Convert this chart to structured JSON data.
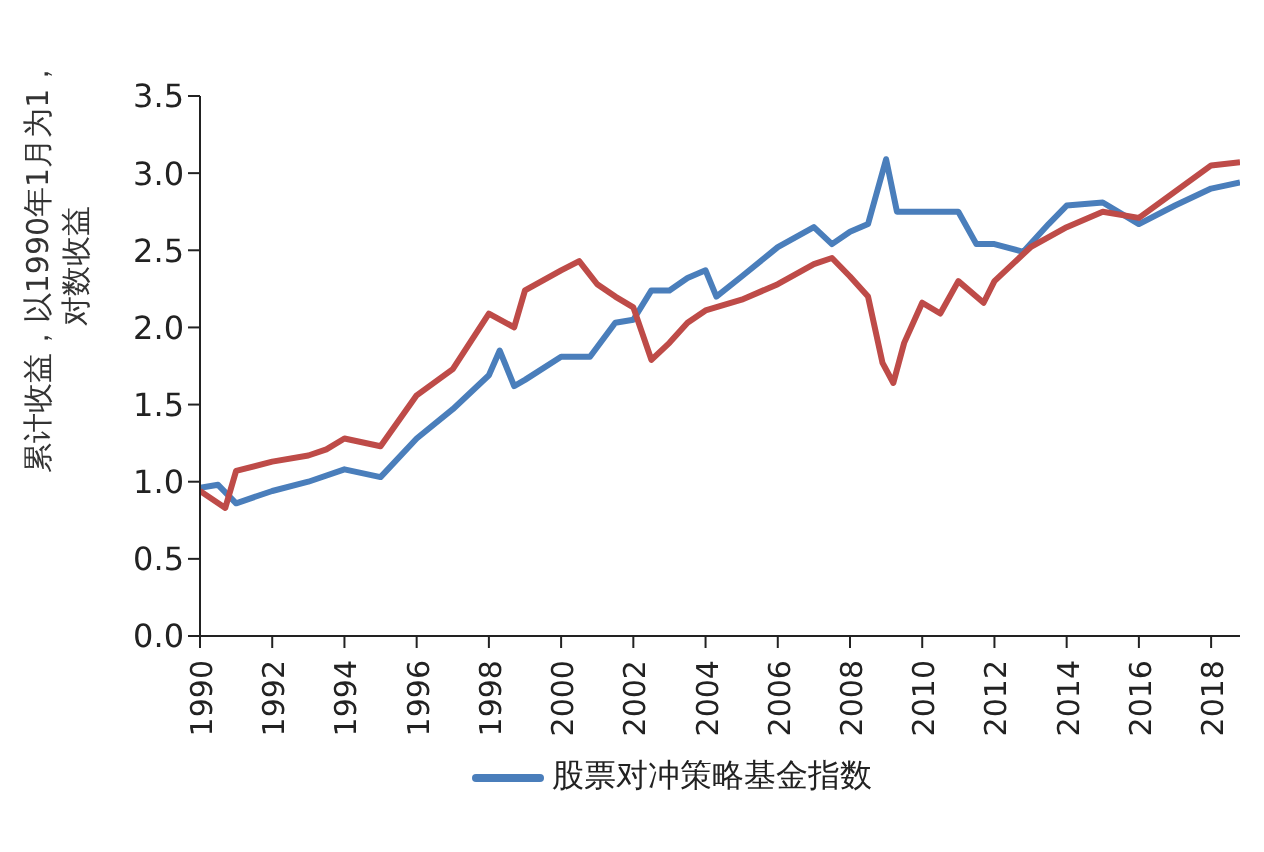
{
  "chart_data": {
    "type": "line",
    "ylabel": "累计收益，以1990年1月为1，对数收益",
    "xlim": [
      1990,
      2018.8
    ],
    "xticks": [
      1990,
      1992,
      1994,
      1996,
      1998,
      2000,
      2002,
      2004,
      2006,
      2008,
      2010,
      2012,
      2014,
      2016,
      2018
    ],
    "ylim": [
      0,
      3.5
    ],
    "yticks": [
      {
        "value": 0,
        "label": "0.0"
      },
      0.5,
      {
        "value": 1,
        "label": "1.0"
      },
      1.5,
      {
        "value": 2,
        "label": "2.0"
      },
      2.5,
      {
        "value": 3,
        "label": "3.0"
      },
      3.5
    ],
    "grid": false,
    "legend": "bottom",
    "marker": "none",
    "line_style": "solid",
    "series": [
      {
        "name": "股票对冲策略基金指数",
        "color": "#4a7ebb",
        "x": [
          1990,
          1990.5,
          1991,
          1992,
          1993,
          1994,
          1995,
          1996,
          1997,
          1998,
          1998.3,
          1998.7,
          1999,
          2000,
          2000.8,
          2001.5,
          2002,
          2002.5,
          2003,
          2003.5,
          2004,
          2004.3,
          2005,
          2006,
          2007,
          2007.5,
          2008,
          2008.5,
          2009,
          2009.3,
          2010,
          2011,
          2011.5,
          2012,
          2012.8,
          2013.5,
          2014,
          2015,
          2016,
          2017,
          2018,
          2018.8
        ],
        "values": [
          0.96,
          0.98,
          0.86,
          0.94,
          1.0,
          1.08,
          1.03,
          1.28,
          1.47,
          1.69,
          1.85,
          1.62,
          1.66,
          1.81,
          1.81,
          2.03,
          2.05,
          2.24,
          2.24,
          2.32,
          2.37,
          2.2,
          2.33,
          2.52,
          2.65,
          2.54,
          2.62,
          2.67,
          3.09,
          2.75,
          2.75,
          2.75,
          2.54,
          2.54,
          2.49,
          2.67,
          2.79,
          2.81,
          2.67,
          2.79,
          2.9,
          2.94
        ]
      },
      {
        "color": "#be4b48",
        "x": [
          1990,
          1990.7,
          1991,
          1992,
          1993,
          1993.5,
          1994,
          1995,
          1996,
          1997,
          1998,
          1998.7,
          1999,
          2000,
          2000.5,
          2001,
          2001.5,
          2002,
          2002.5,
          2003,
          2003.5,
          2004,
          2005,
          2006,
          2007,
          2007.5,
          2008,
          2008.5,
          2008.9,
          2009.2,
          2009.5,
          2010,
          2010.5,
          2011,
          2011.7,
          2012,
          2013,
          2014,
          2015,
          2016,
          2017,
          2018,
          2018.8
        ],
        "values": [
          0.94,
          0.83,
          1.07,
          1.13,
          1.17,
          1.21,
          1.28,
          1.23,
          1.56,
          1.73,
          2.09,
          2.0,
          2.24,
          2.37,
          2.43,
          2.28,
          2.2,
          2.13,
          1.79,
          1.9,
          2.03,
          2.11,
          2.18,
          2.28,
          2.41,
          2.45,
          2.33,
          2.2,
          1.77,
          1.64,
          1.9,
          2.16,
          2.09,
          2.3,
          2.16,
          2.3,
          2.52,
          2.65,
          2.75,
          2.71,
          2.88,
          3.05,
          3.07
        ]
      }
    ]
  }
}
